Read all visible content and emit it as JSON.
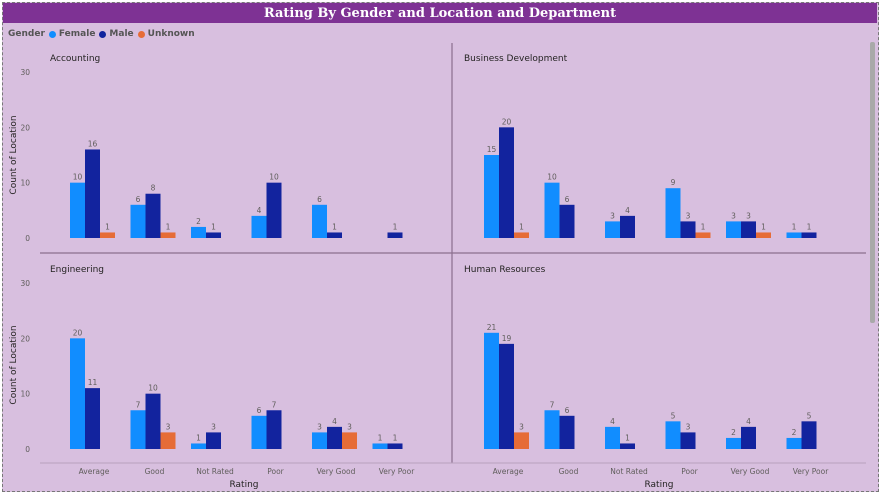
{
  "title": "Rating By Gender and Location and Department",
  "legend": {
    "label": "Gender",
    "items": [
      {
        "name": "Female",
        "color": "#118dff"
      },
      {
        "name": "Male",
        "color": "#12239e"
      },
      {
        "name": "Unknown",
        "color": "#e66c37"
      }
    ]
  },
  "chart_data": {
    "type": "bar",
    "xlabel": "Rating",
    "ylabel": "Count of Location",
    "ylim": [
      0,
      30
    ],
    "yticks": [
      0,
      10,
      20,
      30
    ],
    "categories": [
      "Average",
      "Good",
      "Not Rated",
      "Poor",
      "Very Good",
      "Very Poor"
    ],
    "series_names": [
      "Female",
      "Male",
      "Unknown"
    ],
    "colors": [
      "#118dff",
      "#12239e",
      "#e66c37"
    ],
    "panels": [
      {
        "title": "Accounting",
        "series": [
          {
            "name": "Female",
            "values": [
              10,
              6,
              2,
              4,
              6,
              null
            ]
          },
          {
            "name": "Male",
            "values": [
              16,
              8,
              1,
              10,
              1,
              1
            ]
          },
          {
            "name": "Unknown",
            "values": [
              1,
              1,
              null,
              null,
              null,
              null
            ]
          }
        ]
      },
      {
        "title": "Business Development",
        "series": [
          {
            "name": "Female",
            "values": [
              15,
              10,
              3,
              9,
              3,
              1
            ]
          },
          {
            "name": "Male",
            "values": [
              20,
              6,
              4,
              3,
              3,
              1
            ]
          },
          {
            "name": "Unknown",
            "values": [
              1,
              null,
              null,
              1,
              1,
              null
            ]
          }
        ]
      },
      {
        "title": "Engineering",
        "series": [
          {
            "name": "Female",
            "values": [
              20,
              7,
              1,
              6,
              3,
              1
            ]
          },
          {
            "name": "Male",
            "values": [
              11,
              10,
              3,
              7,
              4,
              1
            ]
          },
          {
            "name": "Unknown",
            "values": [
              null,
              3,
              null,
              null,
              3,
              null
            ]
          }
        ]
      },
      {
        "title": "Human Resources",
        "series": [
          {
            "name": "Female",
            "values": [
              21,
              7,
              4,
              5,
              2,
              2
            ]
          },
          {
            "name": "Male",
            "values": [
              19,
              6,
              1,
              3,
              4,
              5
            ]
          },
          {
            "name": "Unknown",
            "values": [
              3,
              null,
              null,
              null,
              null,
              null
            ]
          }
        ]
      }
    ]
  }
}
